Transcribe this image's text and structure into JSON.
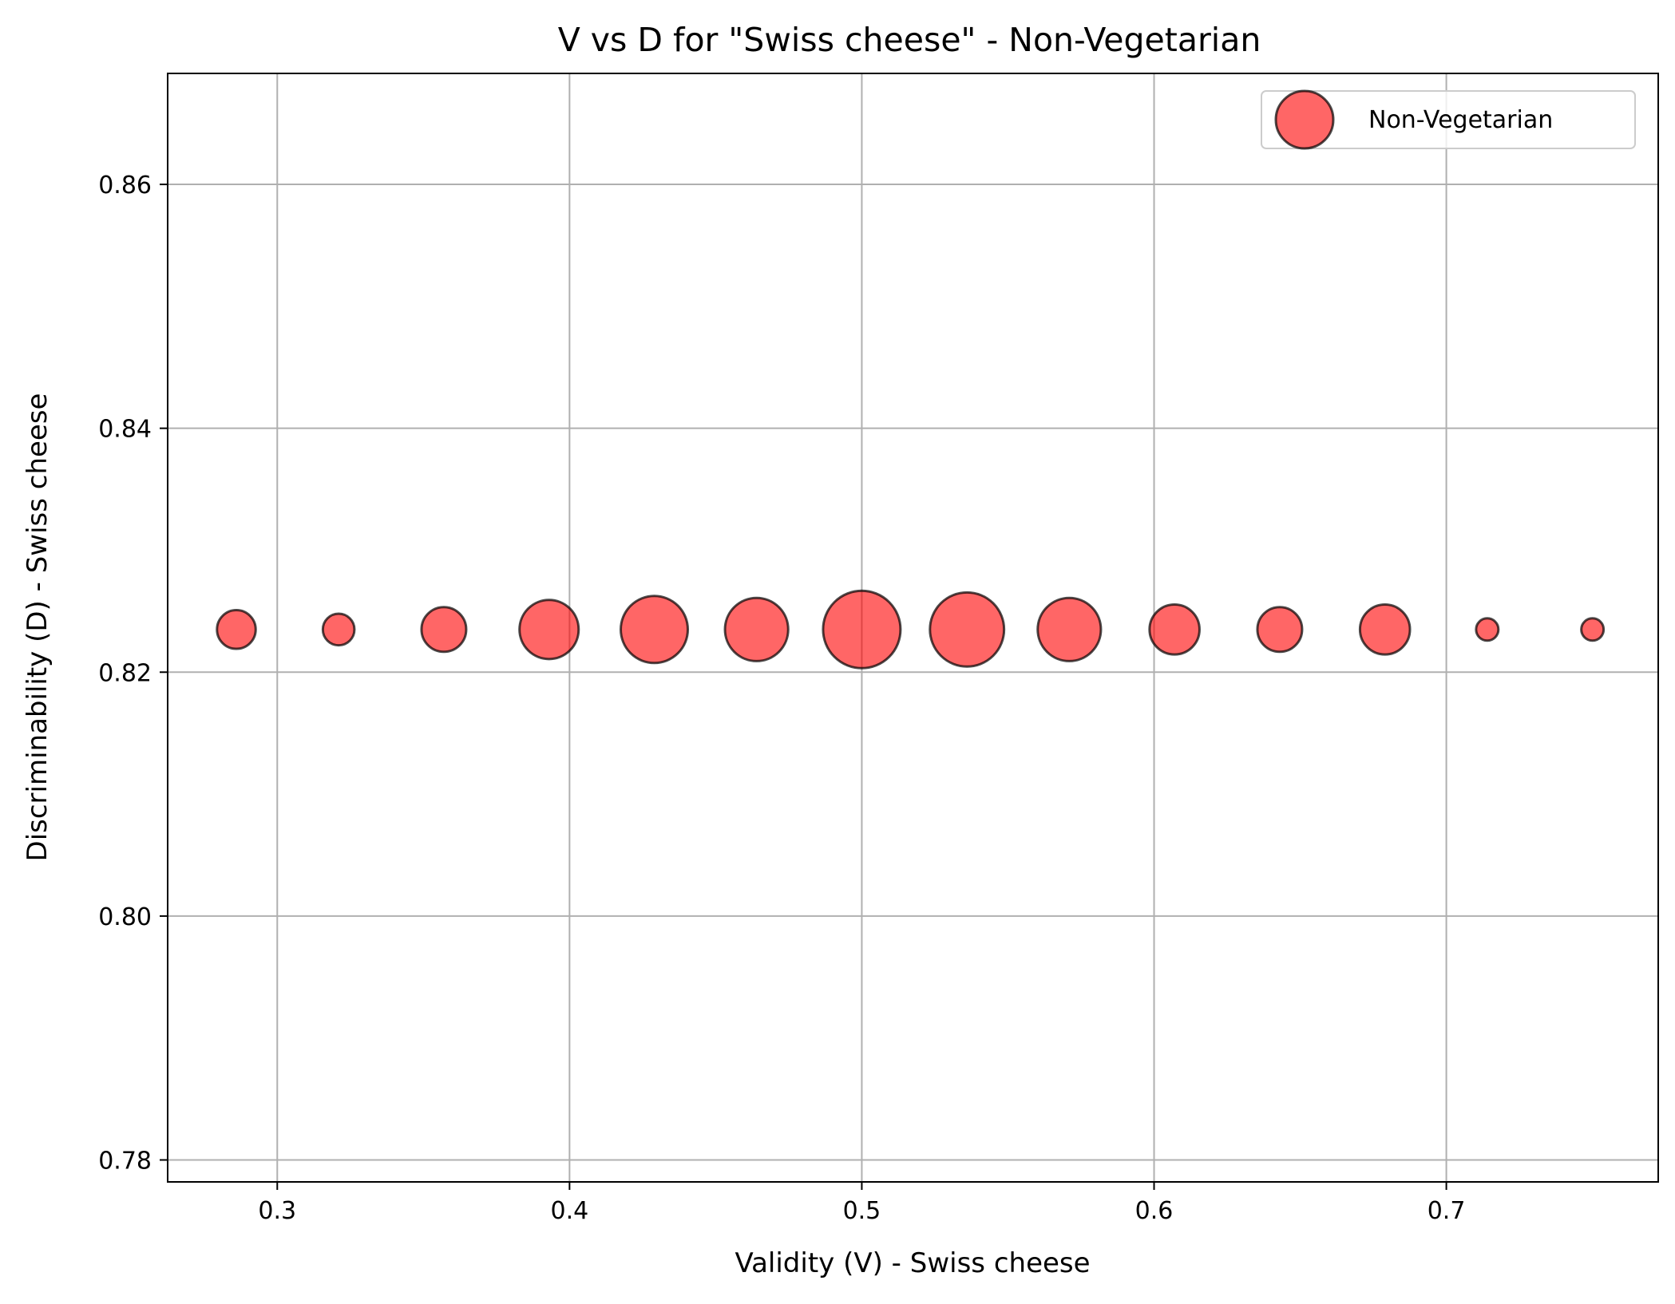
{
  "chart_data": {
    "type": "scatter",
    "title": "V vs D for \"Swiss cheese\" - Non-Vegetarian",
    "xlabel": "Validity (V) - Swiss cheese",
    "ylabel": "Discriminability (D) - Swiss cheese",
    "xlim": [
      0.2625,
      0.7725
    ],
    "ylim": [
      0.7782,
      0.8691
    ],
    "xticks": [
      0.3,
      0.4,
      0.5,
      0.6,
      0.7
    ],
    "xtick_labels": [
      "0.3",
      "0.4",
      "0.5",
      "0.6",
      "0.7"
    ],
    "yticks": [
      0.78,
      0.8,
      0.82,
      0.84,
      0.86
    ],
    "ytick_labels": [
      "0.78",
      "0.80",
      "0.82",
      "0.84",
      "0.86"
    ],
    "grid": true,
    "legend_position": "top-right",
    "series": [
      {
        "name": "Non-Vegetarian",
        "color": "#ff0000",
        "edge_color": "#000000",
        "alpha": 0.6,
        "x": [
          0.286,
          0.321,
          0.357,
          0.393,
          0.429,
          0.464,
          0.5,
          0.536,
          0.571,
          0.607,
          0.643,
          0.679,
          0.714,
          0.75
        ],
        "y": [
          0.8235,
          0.8235,
          0.8235,
          0.8235,
          0.8235,
          0.8235,
          0.8235,
          0.8235,
          0.8235,
          0.8235,
          0.8235,
          0.8235,
          0.8235,
          0.8235
        ],
        "marker_size": [
          3,
          2,
          4,
          7,
          9,
          8,
          12,
          11,
          8,
          5,
          4,
          5,
          1,
          1
        ]
      }
    ]
  }
}
